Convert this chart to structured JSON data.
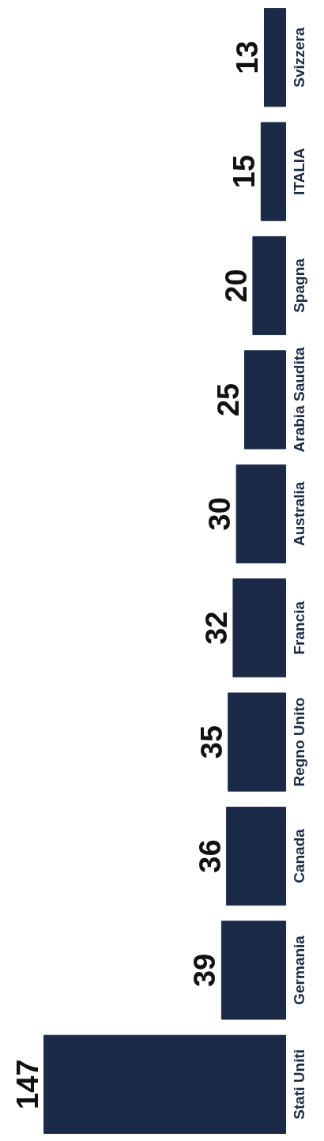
{
  "chart_data": {
    "type": "bar",
    "orientation": "horizontal",
    "data_labels": true,
    "categories": [
      "Svizzera",
      "ITALIA",
      "Spagna",
      "Arabia Saudita",
      "Australia",
      "Francia",
      "Regno Unito",
      "Canada",
      "Germania",
      "Stati Uniti"
    ],
    "values": [
      13,
      15,
      20,
      25,
      30,
      32,
      35,
      36,
      39,
      147
    ],
    "color": "#1b2a47"
  }
}
